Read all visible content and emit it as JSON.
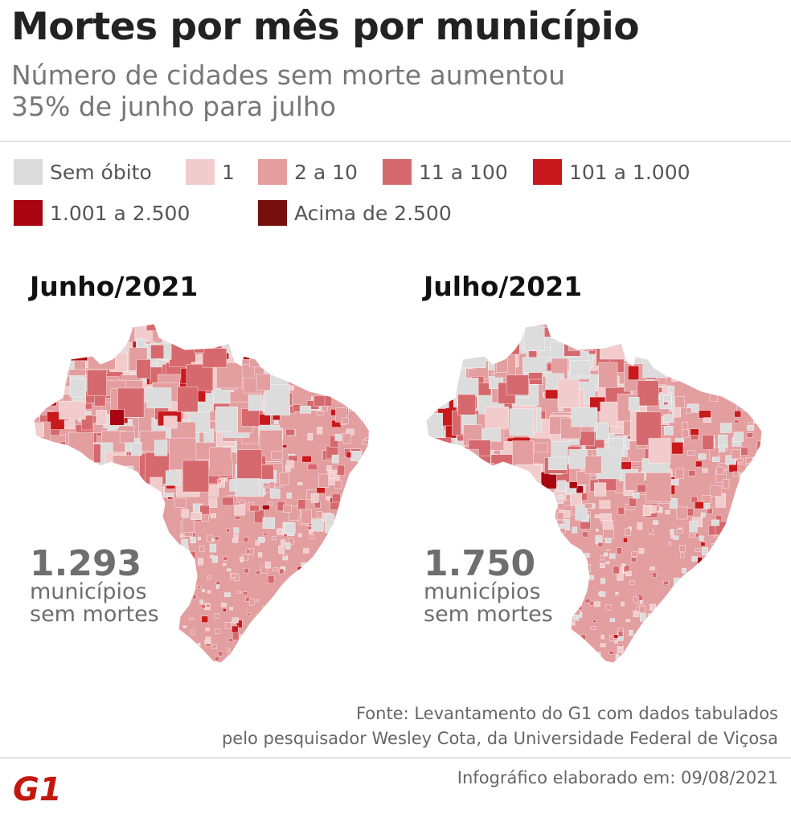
{
  "header": {
    "title": "Mortes por mês por município",
    "subtitle_line1": "Número de cidades sem morte aumentou",
    "subtitle_line2": "35% de junho para julho"
  },
  "legend": [
    {
      "label": "Sem óbito",
      "color": "#dcdcdc"
    },
    {
      "label": "1",
      "color": "#f2cccc"
    },
    {
      "label": "2 a 10",
      "color": "#e39ea0"
    },
    {
      "label": "11 a 100",
      "color": "#d6696d"
    },
    {
      "label": "101 a 1.000",
      "color": "#c8191c"
    },
    {
      "label": "1.001 a 2.500",
      "color": "#a80510"
    },
    {
      "label": "Acima de 2.500",
      "color": "#75100c"
    }
  ],
  "maps": [
    {
      "title": "Junho/2021",
      "count": "1.293",
      "count_line1": "municípios",
      "count_line2": "sem mortes"
    },
    {
      "title": "Julho/2021",
      "count": "1.750",
      "count_line1": "municípios",
      "count_line2": "sem mortes"
    }
  ],
  "footer": {
    "source_line1": "Fonte: Levantamento do G1 com dados tabulados",
    "source_line2": "pelo pesquisador Wesley Cota, da Universidade Federal de Viçosa",
    "logo_text": "G1",
    "date": "Infográfico elaborado em: 09/08/2021"
  }
}
